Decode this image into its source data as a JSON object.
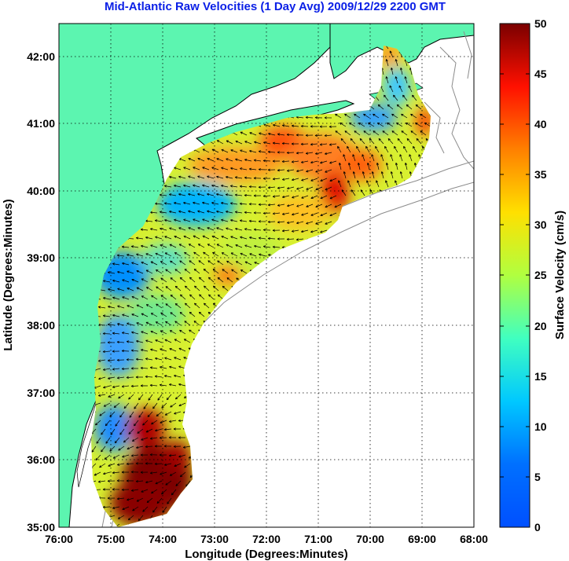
{
  "title": "Mid-Atlantic Raw Velocities (1 Day Avg) 2009/12/29 2200 GMT",
  "map": {
    "lon_ticks": [
      "76:00",
      "75:00",
      "74:00",
      "73:00",
      "72:00",
      "71:00",
      "70:00",
      "69:00",
      "68:00"
    ],
    "lat_ticks": [
      "42:00",
      "41:00",
      "40:00",
      "39:00",
      "38:00",
      "37:00",
      "36:00",
      "35:00"
    ],
    "xlabel": "Longitude (Degrees:Minutes)",
    "ylabel": "Latitude (Degrees:Minutes)",
    "lon_range": [
      -76,
      -68
    ],
    "lat_range": [
      35,
      42.5
    ],
    "grid": "dotted",
    "colors": {
      "land": "#5cf5b0",
      "coast_outline": "#000000",
      "bathymetry": "#8c8c8c"
    }
  },
  "colorbar": {
    "label": "Surface Velocity (cm/s)",
    "ticks": [
      "0",
      "5",
      "10",
      "15",
      "20",
      "25",
      "30",
      "35",
      "40",
      "45",
      "50"
    ],
    "range": [
      0,
      50
    ],
    "colormap": "jet"
  }
}
